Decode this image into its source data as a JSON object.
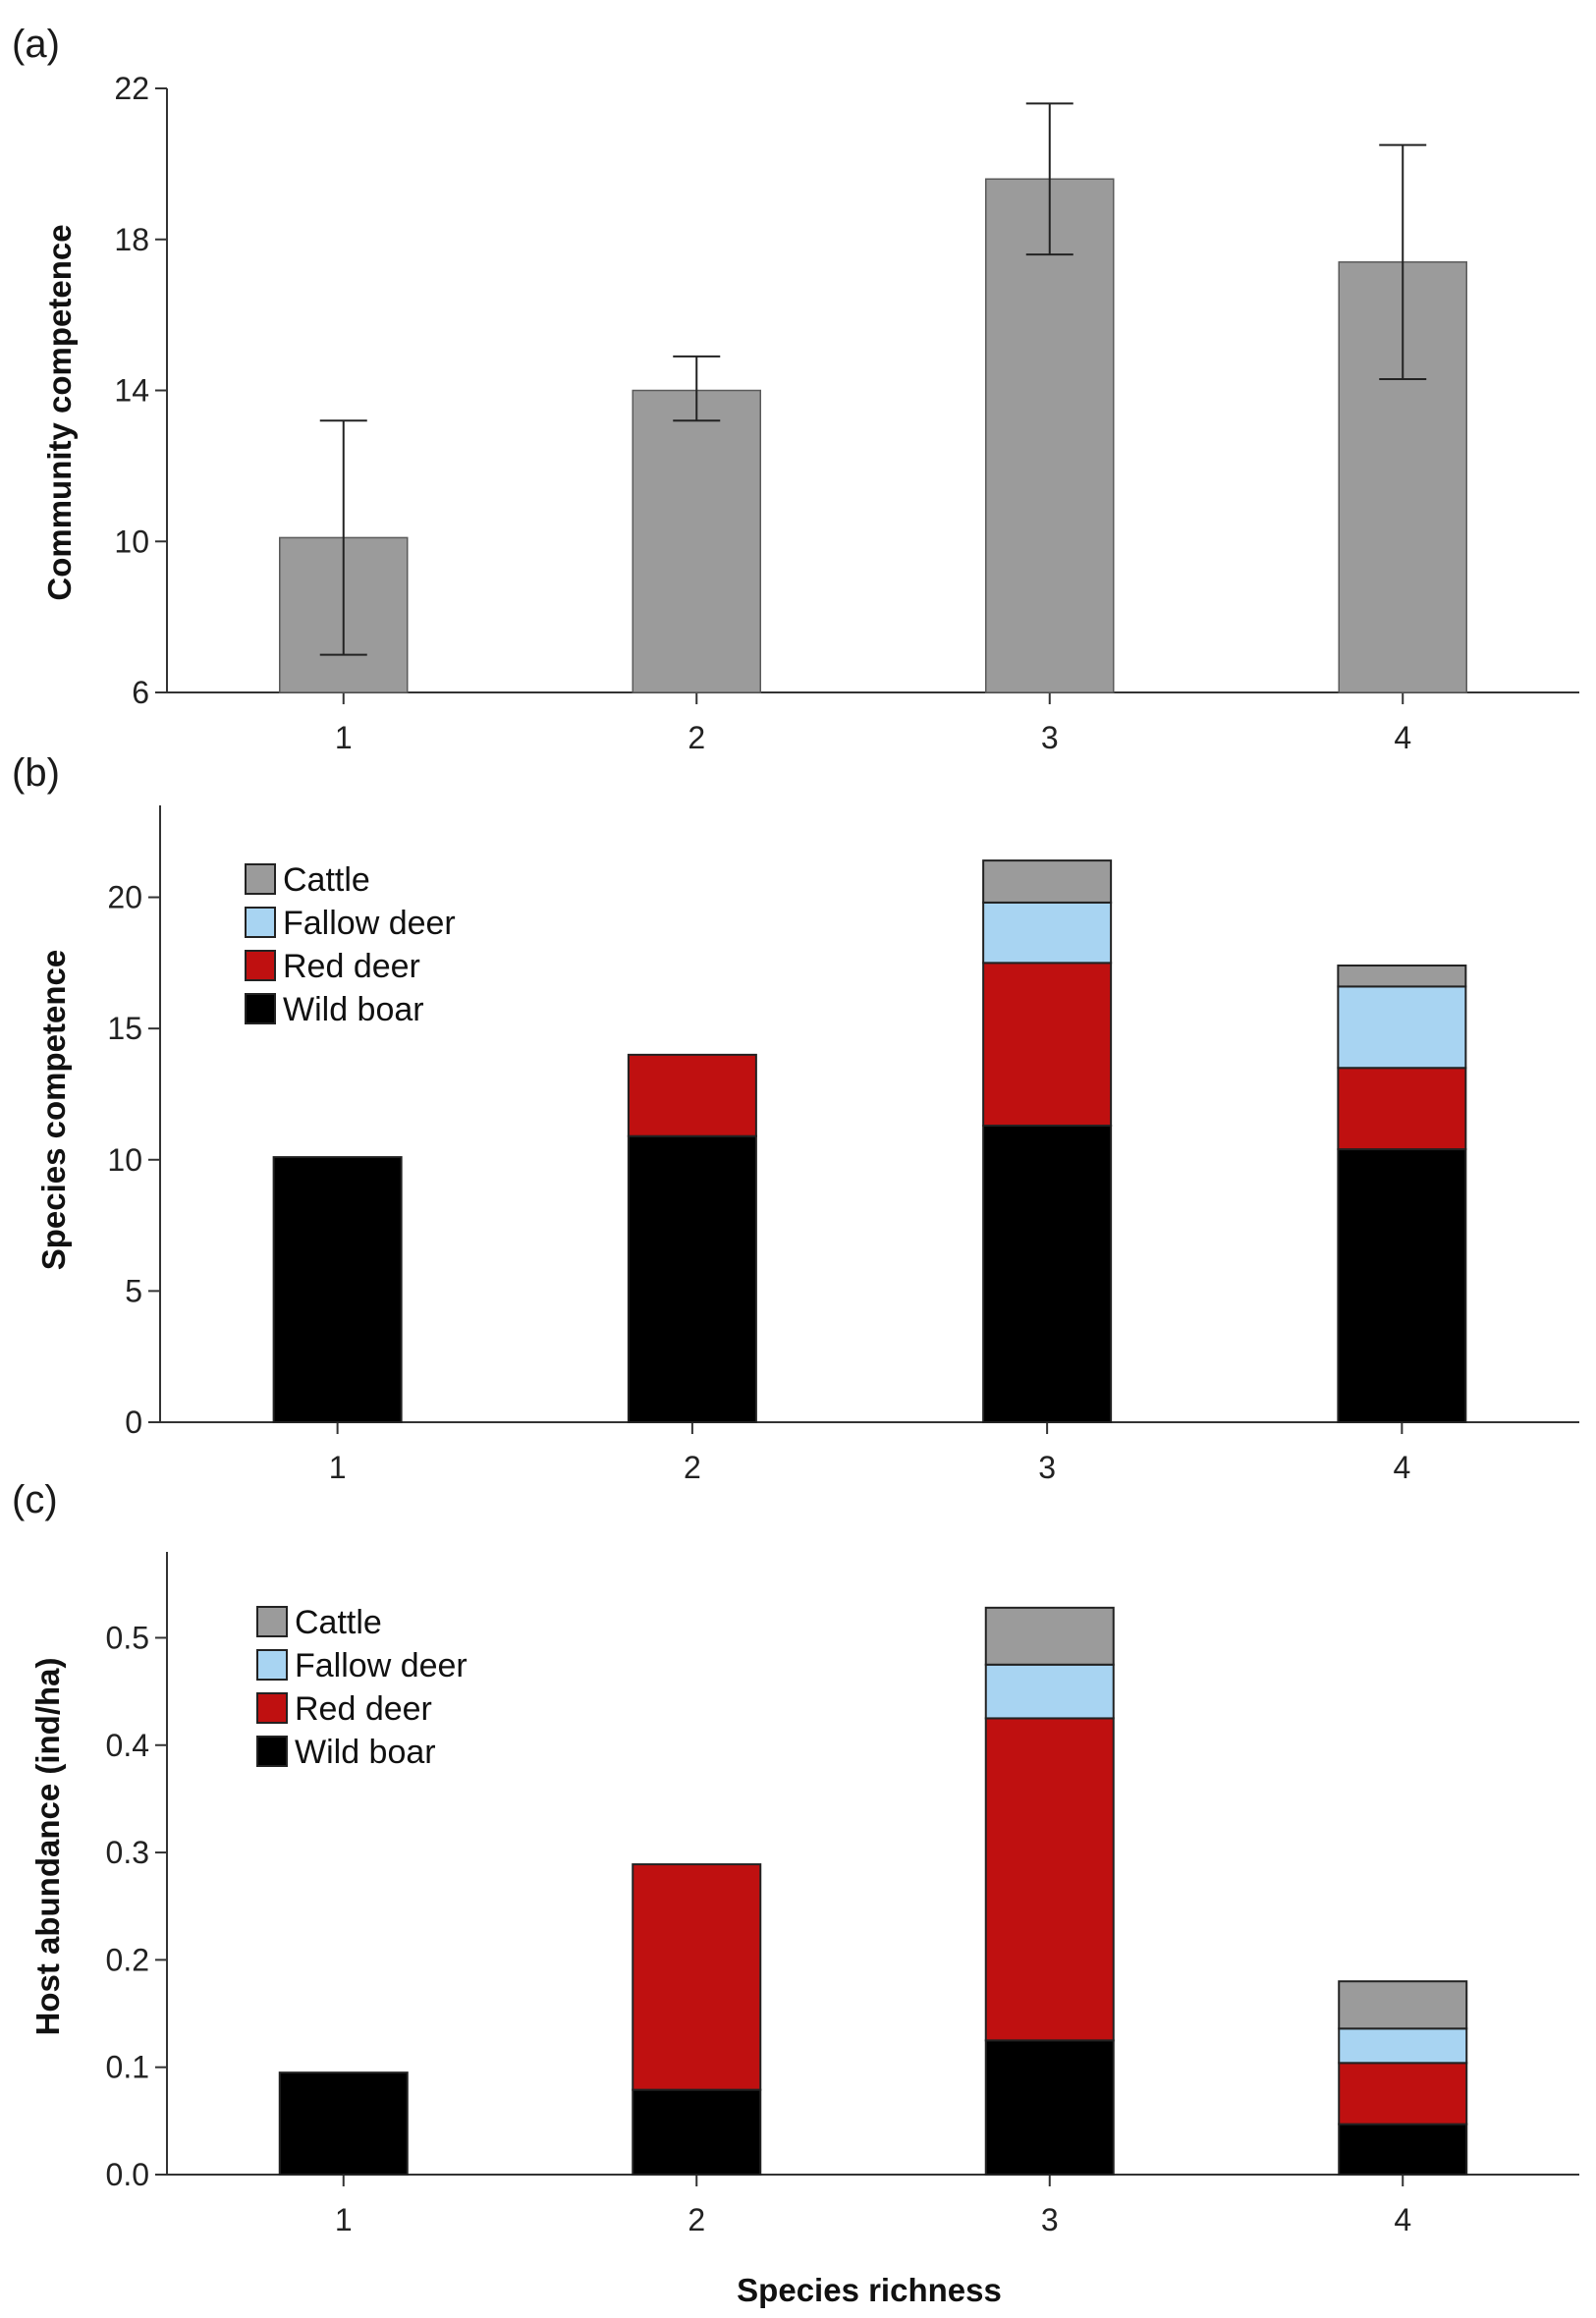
{
  "chart_data": [
    {
      "panel": "(a)",
      "type": "bar",
      "categories": [
        "1",
        "2",
        "3",
        "4"
      ],
      "values": [
        10.1,
        14.0,
        19.6,
        17.4
      ],
      "error_low": [
        7.0,
        13.2,
        17.6,
        14.3
      ],
      "error_high": [
        13.2,
        14.9,
        21.6,
        20.5
      ],
      "ylabel": "Community competence",
      "xlabel": "",
      "ylim": [
        6,
        22
      ],
      "yticks": [
        6,
        10,
        14,
        18,
        22
      ],
      "bar_color": "#9b9b9b"
    },
    {
      "panel": "(b)",
      "type": "bar",
      "stacked": true,
      "categories": [
        "1",
        "2",
        "3",
        "4"
      ],
      "series": [
        {
          "name": "Wild boar",
          "color": "#000000",
          "values": [
            10.1,
            10.9,
            11.3,
            10.4
          ]
        },
        {
          "name": "Red deer",
          "color": "#bf1010",
          "values": [
            0,
            3.1,
            6.2,
            3.1
          ]
        },
        {
          "name": "Fallow deer",
          "color": "#a8d4f2",
          "values": [
            0,
            0,
            2.3,
            3.1
          ]
        },
        {
          "name": "Cattle",
          "color": "#9b9b9b",
          "values": [
            0,
            0,
            1.6,
            0.8
          ]
        }
      ],
      "legend_order": [
        "Cattle",
        "Fallow deer",
        "Red deer",
        "Wild boar"
      ],
      "ylabel": "Species competence",
      "xlabel": "",
      "ylim": [
        0,
        23.5
      ],
      "yticks": [
        0,
        5,
        10,
        15,
        20
      ]
    },
    {
      "panel": "(c)",
      "type": "bar",
      "stacked": true,
      "categories": [
        "1",
        "2",
        "3",
        "4"
      ],
      "series": [
        {
          "name": "Wild boar",
          "color": "#000000",
          "values": [
            0.095,
            0.079,
            0.125,
            0.047
          ]
        },
        {
          "name": "Red deer",
          "color": "#bf1010",
          "values": [
            0,
            0.21,
            0.3,
            0.057
          ]
        },
        {
          "name": "Fallow deer",
          "color": "#a8d4f2",
          "values": [
            0,
            0,
            0.05,
            0.032
          ]
        },
        {
          "name": "Cattle",
          "color": "#9b9b9b",
          "values": [
            0,
            0,
            0.053,
            0.044
          ]
        }
      ],
      "legend_order": [
        "Cattle",
        "Fallow deer",
        "Red deer",
        "Wild boar"
      ],
      "ylabel": "Host abundance (ind/ha)",
      "xlabel": "Species richness",
      "ylim": [
        0,
        0.58
      ],
      "yticks": [
        "0.0",
        "0.1",
        "0.2",
        "0.3",
        "0.4",
        "0.5"
      ]
    }
  ]
}
